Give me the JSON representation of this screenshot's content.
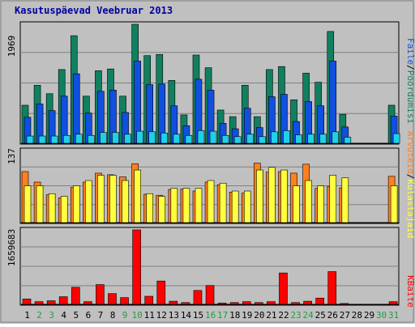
{
  "title": "Kasutuspäevad Veebruar 2013",
  "colors": {
    "frame_bg": "#c0c0c0",
    "plot_bg": "#c0c0c0",
    "grid": "#808080",
    "title": "#0000a0",
    "pages": "#108060",
    "files": "#1050e0",
    "visits": "#20d0e8",
    "hosts": "#ff8020",
    "visitors": "#ffff40",
    "kbytes": "#ff0000",
    "weekday_label": "#000000",
    "weekend_label": "#20a040"
  },
  "legend": {
    "panel1_files": "Faile",
    "panel1_sep1": "/",
    "panel1_pages": "Pöördumisi",
    "panel2_hosts": "Arvuteid",
    "panel2_sep": "/",
    "panel2_visitors": "Külastajaid",
    "panel3_kbytes": "KBaite"
  },
  "chart_data": [
    {
      "type": "bar",
      "panel": "requests",
      "ymax_label": "1969",
      "ylim": [
        0,
        1969
      ],
      "grid": true,
      "categories": [
        "1",
        "2",
        "3",
        "4",
        "5",
        "6",
        "7",
        "8",
        "9",
        "10",
        "11",
        "12",
        "13",
        "14",
        "15",
        "16",
        "17",
        "18",
        "19",
        "20",
        "21",
        "22",
        "23",
        "24",
        "25",
        "26",
        "27",
        "28",
        "29",
        "30",
        "31"
      ],
      "weekend_days": [
        "2",
        "3",
        "9",
        "10",
        "16",
        "17",
        "23",
        "24",
        "30",
        "31"
      ],
      "series": [
        {
          "name": "Pöördumisi",
          "key": "pages",
          "values": [
            630,
            960,
            820,
            1220,
            1780,
            780,
            1200,
            1230,
            780,
            1969,
            1450,
            1470,
            1040,
            470,
            1460,
            1250,
            550,
            440,
            960,
            440,
            1220,
            1270,
            720,
            1160,
            1010,
            1850,
            480,
            0,
            0,
            0,
            630
          ]
        },
        {
          "name": "Faile",
          "key": "files",
          "values": [
            430,
            650,
            540,
            780,
            1150,
            500,
            860,
            880,
            510,
            1360,
            970,
            980,
            620,
            290,
            1060,
            880,
            330,
            240,
            580,
            260,
            770,
            810,
            360,
            690,
            620,
            1360,
            270,
            0,
            0,
            0,
            450
          ]
        },
        {
          "name": "",
          "key": "visits",
          "values": [
            120,
            120,
            120,
            130,
            150,
            130,
            180,
            180,
            150,
            200,
            190,
            170,
            150,
            130,
            210,
            200,
            130,
            110,
            150,
            110,
            190,
            210,
            140,
            150,
            150,
            190,
            100,
            0,
            0,
            0,
            160
          ]
        }
      ]
    },
    {
      "type": "bar",
      "panel": "visitors",
      "ymax_label": "137",
      "ylim": [
        0,
        137
      ],
      "grid": true,
      "series": [
        {
          "name": "Arvuteid",
          "key": "hosts",
          "values": [
            97,
            77,
            53,
            47,
            67,
            77,
            94,
            91,
            87,
            112,
            54,
            52,
            63,
            64,
            60,
            77,
            72,
            58,
            56,
            113,
            96,
            97,
            94,
            111,
            65,
            69,
            66,
            0,
            0,
            0,
            88
          ]
        },
        {
          "name": "Külastajaid",
          "key": "visitors",
          "values": [
            70,
            70,
            55,
            50,
            70,
            80,
            90,
            90,
            80,
            100,
            55,
            50,
            65,
            65,
            65,
            80,
            75,
            60,
            60,
            100,
            105,
            100,
            70,
            80,
            70,
            90,
            85,
            0,
            0,
            0,
            70
          ]
        }
      ]
    },
    {
      "type": "bar",
      "panel": "kbytes",
      "ymax_label": "1659683",
      "ylim": [
        0,
        1659683
      ],
      "grid": true,
      "series": [
        {
          "name": "KBaite",
          "key": "kbytes",
          "values": [
            120000,
            60000,
            80000,
            170000,
            380000,
            60000,
            440000,
            240000,
            150000,
            1659683,
            180000,
            520000,
            70000,
            40000,
            310000,
            420000,
            30000,
            40000,
            60000,
            40000,
            60000,
            700000,
            40000,
            70000,
            140000,
            730000,
            20000,
            0,
            0,
            0,
            60000
          ]
        }
      ]
    }
  ]
}
